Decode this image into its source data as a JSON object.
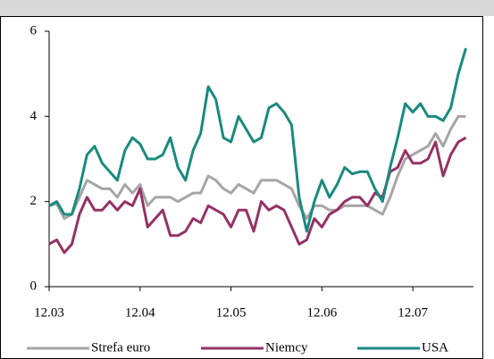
{
  "chart_data": {
    "type": "line",
    "x": [
      0,
      1,
      2,
      3,
      4,
      5,
      6,
      7,
      8,
      9,
      10,
      11,
      12,
      13,
      14,
      15,
      16,
      17,
      18,
      19,
      20,
      21,
      22,
      23,
      24,
      25,
      26,
      27,
      28,
      29,
      30,
      31,
      32,
      33,
      34,
      35,
      36,
      37,
      38,
      39,
      40,
      41,
      42,
      43,
      44,
      45,
      46,
      47,
      48,
      49,
      50,
      51,
      52,
      53,
      54,
      55
    ],
    "xlim": [
      0,
      56
    ],
    "xticks": [
      {
        "value": 0,
        "label": "12.03"
      },
      {
        "value": 12,
        "label": "12.04"
      },
      {
        "value": 24,
        "label": "12.05"
      },
      {
        "value": 36,
        "label": "12.06"
      },
      {
        "value": 48,
        "label": "12.07"
      }
    ],
    "ylim": [
      0,
      6
    ],
    "yticks": [
      0,
      2,
      4,
      6
    ],
    "series": [
      {
        "name": "Strefa euro",
        "color": "#a6a6a6",
        "values": [
          1.9,
          1.95,
          1.6,
          1.7,
          2.1,
          2.5,
          2.4,
          2.3,
          2.3,
          2.1,
          2.4,
          2.2,
          2.4,
          1.9,
          2.1,
          2.1,
          2.1,
          2.0,
          2.1,
          2.2,
          2.2,
          2.6,
          2.5,
          2.3,
          2.2,
          2.4,
          2.3,
          2.2,
          2.5,
          2.5,
          2.5,
          2.4,
          2.3,
          1.9,
          1.6,
          1.9,
          1.9,
          1.8,
          1.8,
          1.9,
          1.9,
          1.9,
          1.9,
          1.8,
          1.7,
          2.1,
          2.6,
          3.0,
          3.1,
          3.2,
          3.3,
          3.6,
          3.3,
          3.7,
          4.0,
          4.0
        ]
      },
      {
        "name": "Niemcy",
        "color": "#943264",
        "values": [
          1.0,
          1.1,
          0.8,
          1.0,
          1.7,
          2.1,
          1.8,
          1.8,
          2.0,
          1.8,
          2.0,
          1.9,
          2.3,
          1.4,
          1.6,
          1.8,
          1.2,
          1.2,
          1.3,
          1.6,
          1.5,
          1.9,
          1.8,
          1.7,
          1.4,
          1.8,
          1.8,
          1.3,
          2.0,
          1.8,
          1.9,
          1.8,
          1.4,
          1.0,
          1.1,
          1.6,
          1.4,
          1.7,
          1.8,
          2.0,
          2.1,
          2.1,
          1.9,
          2.2,
          2.1,
          2.7,
          2.8,
          3.2,
          2.9,
          2.9,
          3.0,
          3.4,
          2.6,
          3.1,
          3.4,
          3.5
        ]
      },
      {
        "name": "USA",
        "color": "#1a8a80",
        "values": [
          1.9,
          2.0,
          1.7,
          1.7,
          2.3,
          3.1,
          3.3,
          2.9,
          2.7,
          2.5,
          3.2,
          3.5,
          3.35,
          3.0,
          3.0,
          3.1,
          3.5,
          2.8,
          2.5,
          3.2,
          3.6,
          4.7,
          4.4,
          3.5,
          3.4,
          4.0,
          3.7,
          3.4,
          3.5,
          4.2,
          4.3,
          4.1,
          3.8,
          2.1,
          1.3,
          2.0,
          2.5,
          2.1,
          2.4,
          2.8,
          2.65,
          2.7,
          2.7,
          2.3,
          2.0,
          2.8,
          3.5,
          4.3,
          4.1,
          4.3,
          4.0,
          4.0,
          3.9,
          4.2,
          5.0,
          5.6
        ]
      }
    ]
  }
}
